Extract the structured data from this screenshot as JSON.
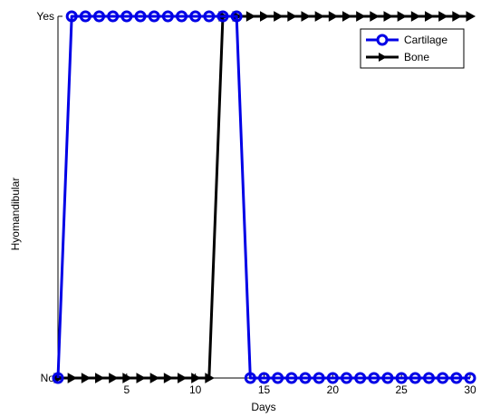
{
  "chart_data": {
    "type": "line",
    "xlabel": "Days",
    "ylabel": "Hyomandibular",
    "xlim": [
      0,
      30
    ],
    "xticks": [
      5,
      10,
      15,
      20,
      25,
      30
    ],
    "yticks": [
      {
        "value": 0,
        "label": "No"
      },
      {
        "value": 1,
        "label": "Yes"
      }
    ],
    "grid": false,
    "legend_position": "top-right",
    "series": [
      {
        "name": "Cartilage",
        "color": "#0000e6",
        "marker": "circle",
        "x": [
          0,
          1,
          2,
          3,
          4,
          5,
          6,
          7,
          8,
          9,
          10,
          11,
          12,
          13,
          14,
          15,
          16,
          17,
          18,
          19,
          20,
          21,
          22,
          23,
          24,
          25,
          26,
          27,
          28,
          29,
          30
        ],
        "y": [
          0,
          1,
          1,
          1,
          1,
          1,
          1,
          1,
          1,
          1,
          1,
          1,
          1,
          1,
          0,
          0,
          0,
          0,
          0,
          0,
          0,
          0,
          0,
          0,
          0,
          0,
          0,
          0,
          0,
          0,
          0
        ]
      },
      {
        "name": "Bone",
        "color": "#000000",
        "marker": "arrow",
        "x": [
          0,
          1,
          2,
          3,
          4,
          5,
          6,
          7,
          8,
          9,
          10,
          11,
          12,
          13,
          14,
          15,
          16,
          17,
          18,
          19,
          20,
          21,
          22,
          23,
          24,
          25,
          26,
          27,
          28,
          29,
          30
        ],
        "y": [
          0,
          0,
          0,
          0,
          0,
          0,
          0,
          0,
          0,
          0,
          0,
          0,
          1,
          1,
          1,
          1,
          1,
          1,
          1,
          1,
          1,
          1,
          1,
          1,
          1,
          1,
          1,
          1,
          1,
          1,
          1
        ]
      }
    ]
  }
}
